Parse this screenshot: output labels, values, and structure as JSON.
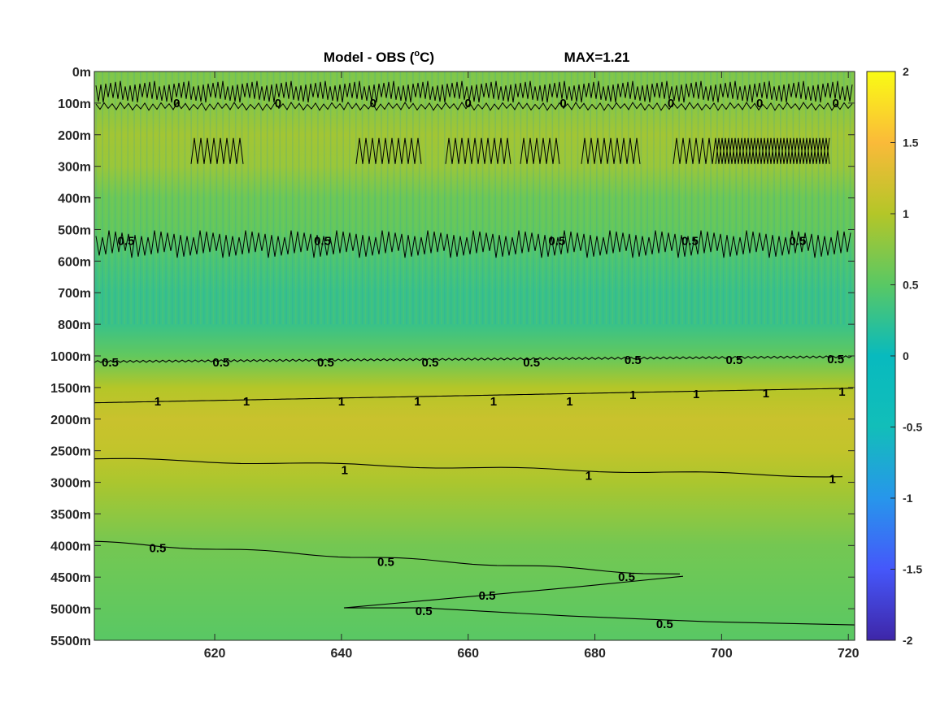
{
  "chart_data": {
    "type": "heatmap",
    "title": "Model - OBS (°C)",
    "title_parts": {
      "prefix": "Model - OBS (",
      "superscript": "o",
      "suffix": "C)"
    },
    "max_label": "MAX=1.21",
    "xlabel": "",
    "ylabel": "",
    "xlim": [
      601,
      721
    ],
    "x_ticks": [
      620,
      640,
      660,
      680,
      700,
      720
    ],
    "y_tick_labels": [
      "0m",
      "100m",
      "200m",
      "300m",
      "400m",
      "500m",
      "600m",
      "700m",
      "800m",
      "1000m",
      "1500m",
      "2000m",
      "2500m",
      "3000m",
      "3500m",
      "4000m",
      "4500m",
      "5000m",
      "5500m"
    ],
    "colorbar": {
      "range": [
        -2,
        2
      ],
      "ticks": [
        "2",
        "1.5",
        "1",
        "0.5",
        "0",
        "-0.5",
        "-1",
        "-1.5",
        "-2"
      ],
      "colormap": "parula"
    },
    "depth_profile": [
      {
        "depth": "0m",
        "value": 0.7
      },
      {
        "depth": "100m",
        "value": 0.75
      },
      {
        "depth": "200m",
        "value": 0.9
      },
      {
        "depth": "300m",
        "value": 0.85
      },
      {
        "depth": "400m",
        "value": 0.6
      },
      {
        "depth": "500m",
        "value": 0.55
      },
      {
        "depth": "600m",
        "value": 0.4
      },
      {
        "depth": "700m",
        "value": 0.3
      },
      {
        "depth": "800m",
        "value": 0.3
      },
      {
        "depth": "1000m",
        "value": 0.55
      },
      {
        "depth": "1500m",
        "value": 1.0
      },
      {
        "depth": "2000m",
        "value": 1.15
      },
      {
        "depth": "2500m",
        "value": 1.1
      },
      {
        "depth": "3000m",
        "value": 0.95
      },
      {
        "depth": "3500m",
        "value": 0.8
      },
      {
        "depth": "4000m",
        "value": 0.65
      },
      {
        "depth": "4500m",
        "value": 0.6
      },
      {
        "depth": "5000m",
        "value": 0.55
      },
      {
        "depth": "5500m",
        "value": 0.5
      }
    ],
    "contour_labels": [
      {
        "text": "0.5",
        "x": 603.5,
        "depth": "1000m"
      },
      {
        "text": "0.5",
        "x": 621,
        "depth": "1000m"
      },
      {
        "text": "0.5",
        "x": 637.5,
        "depth": "1000m"
      },
      {
        "text": "0.5",
        "x": 654,
        "depth": "1000m"
      },
      {
        "text": "0.5",
        "x": 670,
        "depth": "1000m"
      },
      {
        "text": "0.5",
        "x": 686,
        "depth": "1000m"
      },
      {
        "text": "0.5",
        "x": 702,
        "depth": "1000m"
      },
      {
        "text": "0.5",
        "x": 718,
        "depth": "1000m"
      },
      {
        "text": "1",
        "x": 611,
        "depth": "1500m"
      },
      {
        "text": "1",
        "x": 625,
        "depth": "1500m"
      },
      {
        "text": "1",
        "x": 640,
        "depth": "1500m"
      },
      {
        "text": "1",
        "x": 652,
        "depth": "1500m"
      },
      {
        "text": "1",
        "x": 664,
        "depth": "1500m"
      },
      {
        "text": "1",
        "x": 676,
        "depth": "1500m"
      },
      {
        "text": "1",
        "x": 686,
        "depth": "1500m"
      },
      {
        "text": "1",
        "x": 696,
        "depth": "1500m"
      },
      {
        "text": "1",
        "x": 707,
        "depth": "1500m"
      },
      {
        "text": "1",
        "x": 719,
        "depth": "1500m"
      },
      {
        "text": "1",
        "x": 640.5,
        "depth": "2500m"
      },
      {
        "text": "1",
        "x": 679,
        "depth": "2500m"
      },
      {
        "text": "1",
        "x": 717.5,
        "depth": "2500m"
      },
      {
        "text": "0.5",
        "x": 611,
        "depth": "4000m"
      },
      {
        "text": "0.5",
        "x": 647,
        "depth": "4000m"
      },
      {
        "text": "0.5",
        "x": 685,
        "depth": "4500m"
      },
      {
        "text": "0.5",
        "x": 663,
        "depth": "4500m"
      },
      {
        "text": "0.5",
        "x": 653,
        "depth": "5000m"
      },
      {
        "text": "0.5",
        "x": 691,
        "depth": "5000m"
      },
      {
        "text": "0.5",
        "x": 606,
        "depth": "500m"
      },
      {
        "text": "0.5",
        "x": 637,
        "depth": "500m"
      },
      {
        "text": "0.5",
        "x": 674,
        "depth": "500m"
      },
      {
        "text": "0.5",
        "x": 695,
        "depth": "500m"
      },
      {
        "text": "0.5",
        "x": 712,
        "depth": "500m"
      },
      {
        "text": "0",
        "x": 614,
        "depth": "100m"
      },
      {
        "text": "0",
        "x": 630,
        "depth": "100m"
      },
      {
        "text": "0",
        "x": 645,
        "depth": "100m"
      },
      {
        "text": "0",
        "x": 660,
        "depth": "100m"
      },
      {
        "text": "0",
        "x": 675,
        "depth": "100m"
      },
      {
        "text": "0",
        "x": 692,
        "depth": "100m"
      },
      {
        "text": "0",
        "x": 706,
        "depth": "100m"
      },
      {
        "text": "0",
        "x": 718,
        "depth": "100m"
      }
    ],
    "grid": false,
    "legend": "none"
  }
}
